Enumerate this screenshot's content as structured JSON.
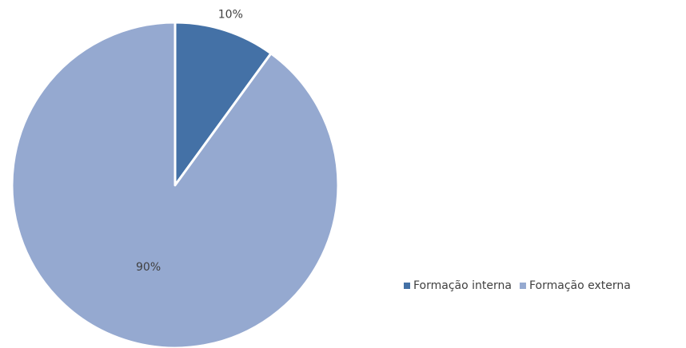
{
  "chart_data": {
    "type": "pie",
    "categories": [
      "Formação interna",
      "Formação externa"
    ],
    "values": [
      10,
      90
    ],
    "value_labels": [
      "10%",
      "90%"
    ],
    "colors": [
      "#4471a6",
      "#95a9d0"
    ],
    "legend": "right"
  }
}
